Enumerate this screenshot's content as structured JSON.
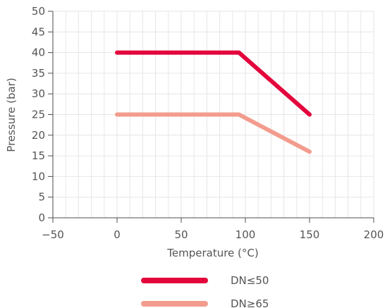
{
  "chart_data": {
    "type": "line",
    "title": "",
    "xlabel": "Temperature (°C)",
    "ylabel": "Pressure (bar)",
    "xlim": [
      -50,
      200
    ],
    "ylim": [
      0,
      50
    ],
    "x_ticks": [
      -50,
      0,
      50,
      100,
      150,
      200
    ],
    "x_tick_labels": [
      "−50",
      "0",
      "50",
      "100",
      "150",
      "200"
    ],
    "y_ticks": [
      0,
      5,
      10,
      15,
      20,
      25,
      30,
      35,
      40,
      45,
      50
    ],
    "y_tick_labels": [
      "0",
      "5",
      "10",
      "15",
      "20",
      "25",
      "30",
      "35",
      "40",
      "45",
      "50"
    ],
    "grid": true,
    "legend_position": "bottom",
    "series": [
      {
        "name": "DN≤50",
        "color": "#e3063c",
        "points": [
          [
            0,
            40
          ],
          [
            95,
            40
          ],
          [
            150,
            25
          ]
        ]
      },
      {
        "name": "DN≥65",
        "color": "#f39c8e",
        "points": [
          [
            0,
            25
          ],
          [
            95,
            25
          ],
          [
            150,
            16
          ]
        ]
      }
    ]
  }
}
